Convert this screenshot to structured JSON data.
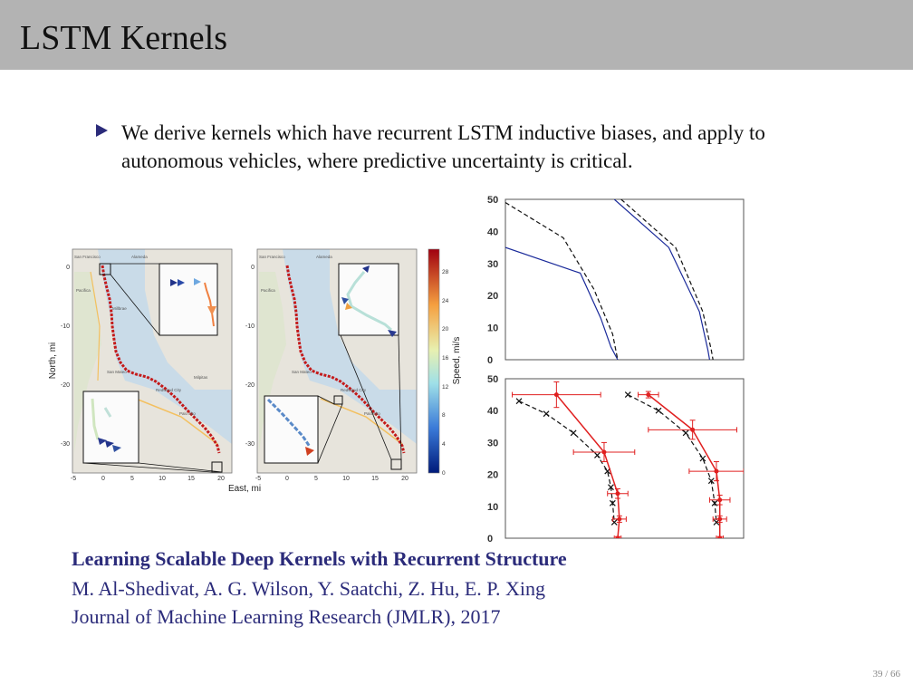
{
  "title": "LSTM Kernels",
  "bullet": "We derive kernels which have recurrent LSTM inductive biases, and apply to autonomous vehicles, where predictive uncertainty is critical.",
  "reference": {
    "title": "Learning Scalable Deep Kernels with Recurrent Structure",
    "authors": "M. Al-Shedivat, A. G. Wilson, Y. Saatchi, Z. Hu, E. P. Xing",
    "journal": "Journal of Machine Learning Research (JMLR), 2017"
  },
  "page_number": "39 / 66",
  "colors": {
    "title_bar": "#b3b3b3",
    "accent": "#2b2b7a",
    "blue_line": "#1a2a9a",
    "red_line": "#e02020"
  },
  "chart_data": [
    {
      "type": "map",
      "panels": 2,
      "xlabel": "East, mi",
      "ylabel": "North, mi",
      "x_ticks": [
        "-5",
        "0",
        "5",
        "10",
        "15",
        "20"
      ],
      "y_ticks": [
        "0",
        "-10",
        "-20",
        "-30"
      ],
      "map_labels": {
        "left": [
          "San Francisco",
          "Alameda",
          "Pacifica",
          "Millbrae",
          "San Mateo",
          "Redwood City",
          "Palo Alto",
          "Milpitas"
        ],
        "right": [
          "San Francisco",
          "Alameda",
          "Pacifica",
          "San Mateo",
          "Redwood City",
          "Palo Alto"
        ]
      },
      "colorbar": {
        "label": "Speed, mi/s",
        "ticks": [
          "28",
          "24",
          "20",
          "16",
          "12",
          "8",
          "4",
          "0"
        ],
        "range": [
          0,
          30
        ]
      }
    },
    {
      "type": "line",
      "ylim": [
        0,
        50
      ],
      "y_ticks": [
        "50",
        "40",
        "30",
        "20",
        "10",
        "0"
      ],
      "series": [
        {
          "name": "predicted-left",
          "style": "solid blue",
          "x": [
            0,
            2.2,
            2.8,
            3.1,
            3.3
          ],
          "y": [
            35,
            27,
            13,
            4,
            0
          ]
        },
        {
          "name": "reference-left",
          "style": "dashed black",
          "x": [
            0,
            1.7,
            2.6,
            3.15,
            3.3
          ],
          "y": [
            49,
            38,
            22,
            8,
            0
          ]
        },
        {
          "name": "predicted-right",
          "style": "solid blue",
          "x": [
            3.2,
            4.8,
            5.7,
            5.95,
            6.0
          ],
          "y": [
            50,
            35,
            15,
            3,
            0
          ]
        },
        {
          "name": "reference-right",
          "style": "dashed black",
          "x": [
            3.4,
            5.0,
            5.8,
            6.05,
            6.1
          ],
          "y": [
            50,
            35,
            15,
            3,
            0
          ]
        }
      ]
    },
    {
      "type": "line",
      "ylim": [
        0,
        50
      ],
      "y_ticks": [
        "50",
        "40",
        "30",
        "20",
        "10",
        "0"
      ],
      "series": [
        {
          "name": "ground-truth-left",
          "style": "dashed black with x markers",
          "x": [
            0.4,
            1.2,
            2.0,
            2.7,
            3.0,
            3.1,
            3.15,
            3.2
          ],
          "y": [
            43,
            39,
            33,
            26,
            21,
            16,
            11,
            5
          ]
        },
        {
          "name": "prediction-left",
          "style": "red with error bars",
          "x": [
            1.5,
            2.9,
            3.3,
            3.35,
            3.3
          ],
          "y": [
            45,
            27,
            14,
            6,
            0
          ],
          "xerr": [
            1.3,
            0.9,
            0.3,
            0.2,
            0.1
          ],
          "yerr": [
            4,
            3,
            1.5,
            1,
            0.5
          ]
        },
        {
          "name": "ground-truth-right",
          "style": "dashed black with x markers",
          "x": [
            3.6,
            4.5,
            5.3,
            5.8,
            6.05,
            6.15,
            6.2
          ],
          "y": [
            45,
            40,
            33,
            25,
            18,
            11,
            5
          ]
        },
        {
          "name": "prediction-right",
          "style": "red with error bars",
          "x": [
            4.2,
            5.5,
            6.2,
            6.3,
            6.3,
            6.3
          ],
          "y": [
            45,
            34,
            21,
            12,
            6,
            0
          ],
          "xerr": [
            0.3,
            1.3,
            0.8,
            0.3,
            0.2,
            0.1
          ],
          "yerr": [
            1,
            3,
            3,
            1.5,
            1,
            0.5
          ]
        }
      ]
    }
  ]
}
